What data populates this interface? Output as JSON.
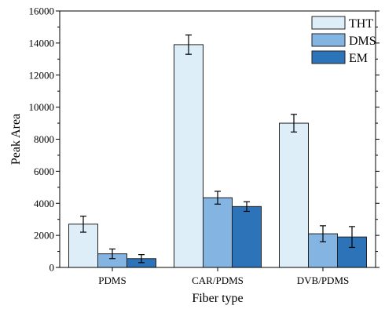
{
  "chart_data": {
    "type": "bar",
    "title": "",
    "xlabel": "Fiber type",
    "ylabel": "Peak Area",
    "categories": [
      "PDMS",
      "CAR/PDMS",
      "DVB/PDMS"
    ],
    "series": [
      {
        "name": "THT",
        "values": [
          2700,
          13900,
          9000
        ],
        "errors": [
          500,
          600,
          550
        ],
        "color": "#deeef8"
      },
      {
        "name": "DMS",
        "values": [
          850,
          4350,
          2100
        ],
        "errors": [
          300,
          400,
          500
        ],
        "color": "#84b5e2"
      },
      {
        "name": "EM",
        "values": [
          550,
          3800,
          1900
        ],
        "errors": [
          250,
          300,
          650
        ],
        "color": "#2d73b8"
      }
    ],
    "ylim": [
      0,
      16000
    ],
    "yticks": [
      0,
      2000,
      4000,
      6000,
      8000,
      10000,
      12000,
      14000,
      16000
    ],
    "grid": false,
    "legend_position": "top-right"
  }
}
